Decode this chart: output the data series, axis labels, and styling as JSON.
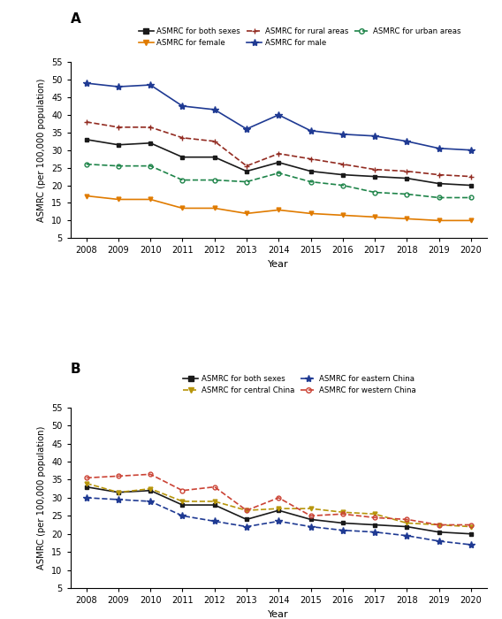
{
  "years": [
    2008,
    2009,
    2010,
    2011,
    2012,
    2013,
    2014,
    2015,
    2016,
    2017,
    2018,
    2019,
    2020
  ],
  "panel_A": {
    "both_sexes": [
      33.0,
      31.5,
      32.0,
      28.0,
      28.0,
      24.0,
      26.5,
      24.0,
      23.0,
      22.5,
      22.0,
      20.5,
      20.0
    ],
    "male": [
      49.0,
      48.0,
      48.5,
      42.5,
      41.5,
      36.0,
      40.0,
      35.5,
      34.5,
      34.0,
      32.5,
      30.5,
      30.0
    ],
    "female": [
      17.0,
      16.0,
      16.0,
      13.5,
      13.5,
      12.0,
      13.0,
      12.0,
      11.5,
      11.0,
      10.5,
      10.0,
      10.0
    ],
    "rural": [
      38.0,
      36.5,
      36.5,
      33.5,
      32.5,
      25.5,
      29.0,
      27.5,
      26.0,
      24.5,
      24.0,
      23.0,
      22.5
    ],
    "urban": [
      26.0,
      25.5,
      25.5,
      21.5,
      21.5,
      21.0,
      23.5,
      21.0,
      20.0,
      18.0,
      17.5,
      16.5,
      16.5
    ]
  },
  "panel_B": {
    "both_sexes": [
      33.0,
      31.5,
      32.0,
      28.0,
      28.0,
      24.0,
      26.5,
      24.0,
      23.0,
      22.5,
      22.0,
      20.5,
      20.0
    ],
    "eastern": [
      30.0,
      29.5,
      29.0,
      25.0,
      23.5,
      22.0,
      23.5,
      22.0,
      21.0,
      20.5,
      19.5,
      18.0,
      17.0
    ],
    "central": [
      34.0,
      31.5,
      32.5,
      29.0,
      29.0,
      26.5,
      27.0,
      27.0,
      26.0,
      25.5,
      23.0,
      22.5,
      22.0
    ],
    "western": [
      35.5,
      36.0,
      36.5,
      32.0,
      33.0,
      26.5,
      30.0,
      25.0,
      25.5,
      24.5,
      24.0,
      22.5,
      22.5
    ]
  },
  "colors": {
    "both_sexes": "#1a1a1a",
    "male": "#1f3a93",
    "female": "#e07b00",
    "rural": "#922b21",
    "urban": "#1e8449",
    "eastern": "#1f3a93",
    "central": "#b7950b",
    "western": "#cb4335"
  },
  "yticks": [
    5,
    10,
    15,
    20,
    25,
    30,
    35,
    40,
    45,
    50,
    55
  ],
  "ylim": [
    5,
    55
  ],
  "ylabel": "ASMRC (per 100,000 population)",
  "xlabel": "Year"
}
